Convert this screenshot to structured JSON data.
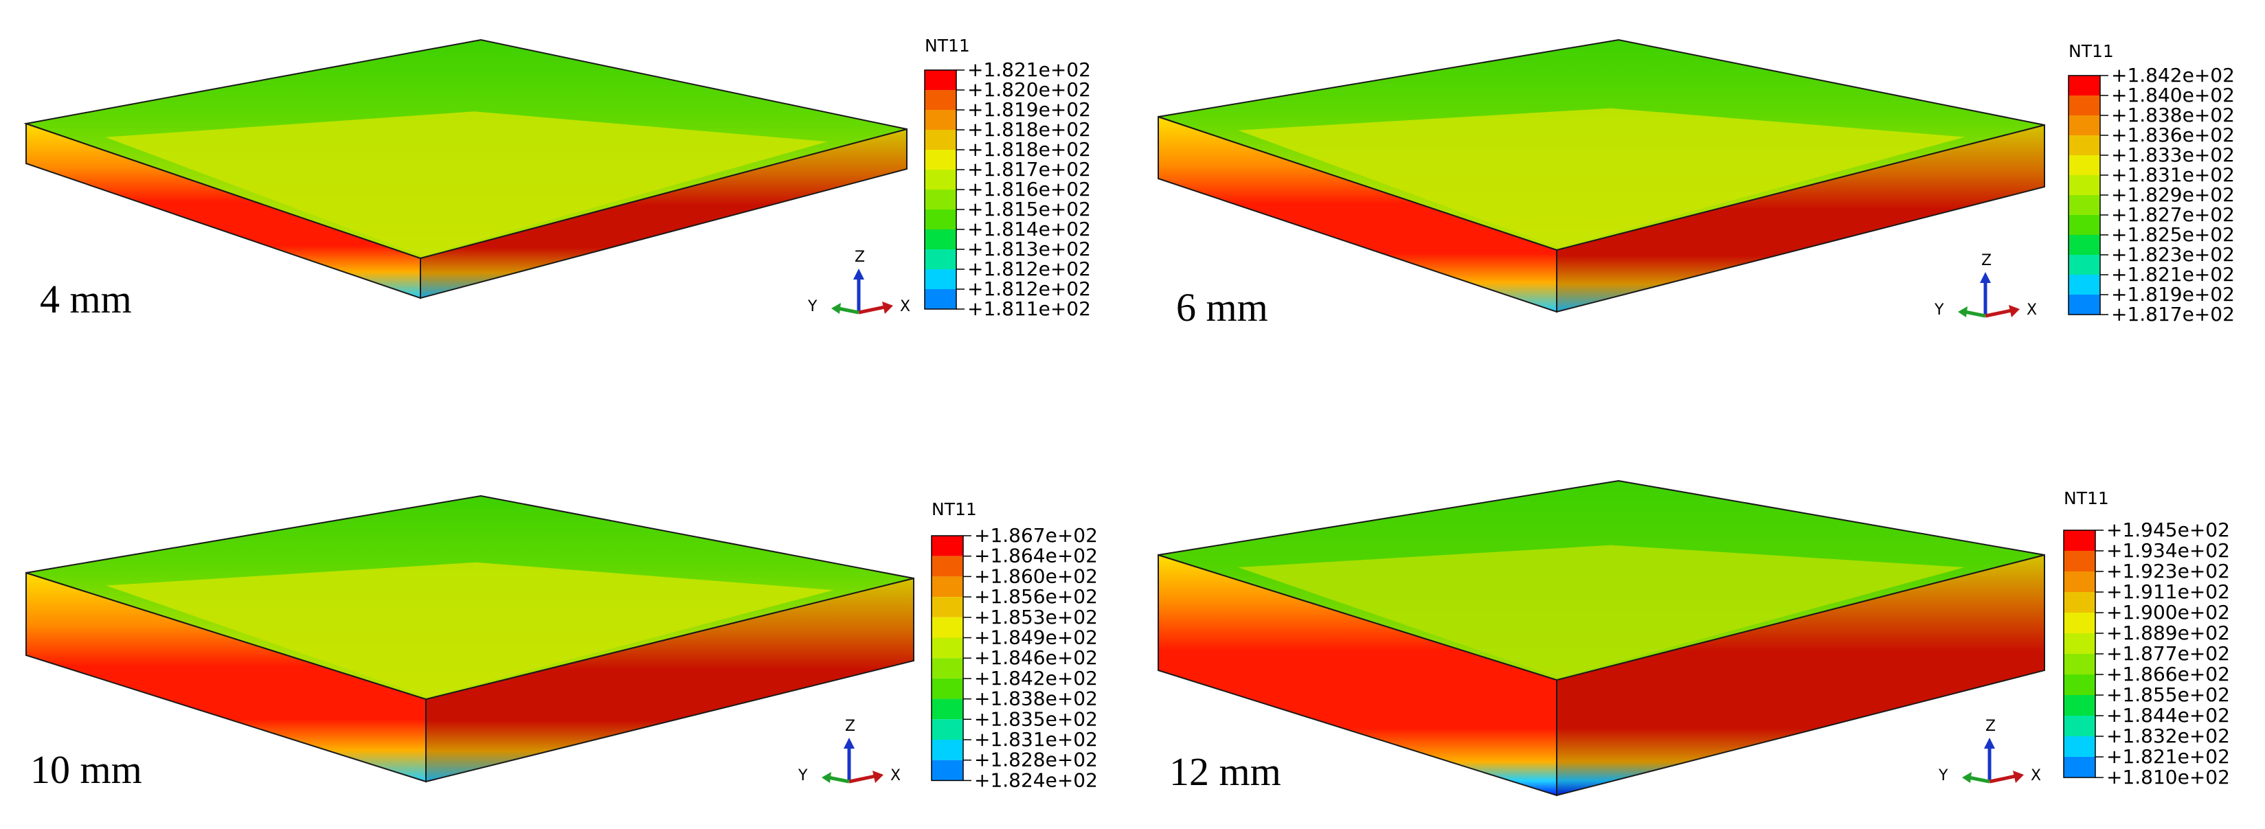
{
  "legend_title": "NT11",
  "axis_letters": {
    "z": "Z",
    "y": "Y",
    "x": "X"
  },
  "colors": {
    "scale": [
      "#ff0000",
      "#f35f00",
      "#f39100",
      "#ecc200",
      "#ecec00",
      "#c0ee00",
      "#8ae800",
      "#4fe000",
      "#00e040",
      "#00e6a0",
      "#00d0ff",
      "#0088ff",
      "#0022ff"
    ],
    "axis_x": "#c0161a",
    "axis_y": "#1f9f2a",
    "axis_z": "#1835c8"
  },
  "panels": [
    {
      "id": "4mm",
      "label": "4 mm",
      "legend_values": [
        "+1.821e+02",
        "+1.820e+02",
        "+1.819e+02",
        "+1.818e+02",
        "+1.818e+02",
        "+1.817e+02",
        "+1.816e+02",
        "+1.815e+02",
        "+1.814e+02",
        "+1.813e+02",
        "+1.812e+02",
        "+1.812e+02",
        "+1.811e+02"
      ]
    },
    {
      "id": "6mm",
      "label": "6 mm",
      "legend_values": [
        "+1.842e+02",
        "+1.840e+02",
        "+1.838e+02",
        "+1.836e+02",
        "+1.833e+02",
        "+1.831e+02",
        "+1.829e+02",
        "+1.827e+02",
        "+1.825e+02",
        "+1.823e+02",
        "+1.821e+02",
        "+1.819e+02",
        "+1.817e+02"
      ]
    },
    {
      "id": "10mm",
      "label": "10 mm",
      "legend_values": [
        "+1.867e+02",
        "+1.864e+02",
        "+1.860e+02",
        "+1.856e+02",
        "+1.853e+02",
        "+1.849e+02",
        "+1.846e+02",
        "+1.842e+02",
        "+1.838e+02",
        "+1.835e+02",
        "+1.831e+02",
        "+1.828e+02",
        "+1.824e+02"
      ]
    },
    {
      "id": "12mm",
      "label": "12 mm",
      "legend_values": [
        "+1.945e+02",
        "+1.934e+02",
        "+1.923e+02",
        "+1.911e+02",
        "+1.900e+02",
        "+1.889e+02",
        "+1.877e+02",
        "+1.866e+02",
        "+1.855e+02",
        "+1.844e+02",
        "+1.832e+02",
        "+1.821e+02",
        "+1.810e+02"
      ]
    }
  ]
}
